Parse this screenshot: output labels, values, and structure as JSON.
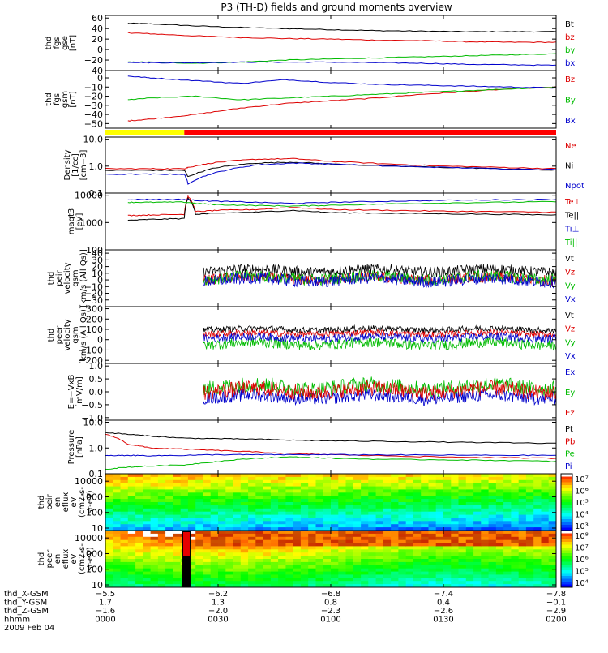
{
  "title": "P3 (TH-D) fields and ground moments overview",
  "chart_data": {
    "type": "line",
    "xlim": [
      0,
      120
    ],
    "x_units_note": "minutes after 0000 UT",
    "time_ticks": [
      0,
      30,
      60,
      90,
      120
    ],
    "panels": [
      {
        "id": "fgs-gse",
        "type": "line",
        "ylabel": [
          "thd",
          "fgs",
          "gse",
          "[nT]"
        ],
        "ylim": [
          -40,
          65
        ],
        "yticks": [
          60,
          40,
          20,
          0,
          -20,
          -40
        ],
        "ytick_labels": [
          "60",
          "40",
          "20",
          "0",
          "−20",
          "−40"
        ],
        "series": [
          {
            "name": "Bt",
            "color": "#000000",
            "x": [
              6,
              12,
              24,
              36,
              48,
              60,
              72,
              84,
              96,
              108,
              120
            ],
            "values": [
              50,
              49,
              45,
              42,
              40,
              38,
              36,
              35,
              34,
              34,
              34
            ]
          },
          {
            "name": "bz",
            "color": "#dd0000",
            "x": [
              6,
              12,
              24,
              36,
              48,
              60,
              72,
              84,
              96,
              108,
              120
            ],
            "values": [
              32,
              30,
              26,
              23,
              21,
              20,
              18,
              17,
              15,
              14,
              14
            ]
          },
          {
            "name": "by",
            "color": "#00bb00",
            "x": [
              6,
              12,
              24,
              36,
              48,
              60,
              72,
              84,
              96,
              108,
              120
            ],
            "values": [
              -24,
              -24,
              -26,
              -24,
              -20,
              -18,
              -16,
              -14,
              -12,
              -10,
              -8
            ]
          },
          {
            "name": "bx",
            "color": "#0000cc",
            "x": [
              6,
              12,
              24,
              36,
              48,
              60,
              72,
              84,
              96,
              108,
              120
            ],
            "values": [
              -24,
              -25,
              -25,
              -24,
              -24,
              -24,
              -25,
              -26,
              -28,
              -29,
              -30
            ]
          }
        ]
      },
      {
        "id": "fgs-gsm",
        "type": "line",
        "ylabel": [
          "thd",
          "fgs",
          "gsm",
          "[nT]"
        ],
        "ylim": [
          -55,
          8
        ],
        "yticks": [
          0,
          -10,
          -20,
          -30,
          -40,
          -50
        ],
        "ytick_labels": [
          "0",
          "−10",
          "−20",
          "−30",
          "−40",
          "−50"
        ],
        "series": [
          {
            "name": "Bz",
            "color": "#dd0000",
            "x": [
              6,
              12,
              24,
              36,
              48,
              60,
              72,
              84,
              96,
              108,
              120
            ],
            "values": [
              -47,
              -45,
              -40,
              -33,
              -28,
              -25,
              -22,
              -18,
              -15,
              -12,
              -10
            ]
          },
          {
            "name": "By",
            "color": "#00bb00",
            "x": [
              6,
              12,
              24,
              36,
              48,
              60,
              72,
              84,
              96,
              108,
              120
            ],
            "values": [
              -24,
              -22,
              -20,
              -24,
              -22,
              -20,
              -18,
              -16,
              -14,
              -12,
              -10
            ]
          },
          {
            "name": "Bx",
            "color": "#0000cc",
            "x": [
              6,
              12,
              24,
              36,
              48,
              60,
              72,
              84,
              96,
              108,
              120
            ],
            "values": [
              2,
              0,
              -3,
              -6,
              -2,
              -5,
              -7,
              -8,
              -9,
              -10,
              -11
            ]
          }
        ]
      },
      {
        "id": "region-bar",
        "type": "bar",
        "segments": [
          {
            "from": 0,
            "to": 21,
            "color": "#ffff00"
          },
          {
            "from": 21,
            "to": 120,
            "color": "#ff0000"
          }
        ]
      },
      {
        "id": "density",
        "type": "line",
        "log": true,
        "ylabel": [
          "Density",
          "[1/cc]",
          "[cm−3]"
        ],
        "ylim": [
          0.1,
          12
        ],
        "yticks": [
          10,
          1,
          0.1
        ],
        "ytick_labels": [
          "10.0",
          "1.0",
          "0.1"
        ],
        "series": [
          {
            "name": "Ne",
            "color": "#dd0000",
            "x": [
              0,
              12,
              21,
              22,
              30,
              40,
              50,
              60,
              75,
              90,
              105,
              120
            ],
            "values": [
              0.8,
              0.8,
              0.8,
              0.9,
              1.4,
              1.8,
              1.9,
              1.5,
              1.2,
              1.0,
              0.9,
              0.8
            ]
          },
          {
            "name": "Ni",
            "color": "#000000",
            "x": [
              0,
              12,
              21,
              22,
              30,
              40,
              50,
              60,
              75,
              90,
              105,
              120
            ],
            "values": [
              0.7,
              0.7,
              0.7,
              0.4,
              0.9,
              1.3,
              1.4,
              1.2,
              1.0,
              0.9,
              0.8,
              0.7
            ]
          },
          {
            "name": "Npot",
            "color": "#0000cc",
            "x": [
              0,
              12,
              21,
              22,
              30,
              40,
              50,
              60,
              75,
              90,
              105,
              120
            ],
            "values": [
              0.5,
              0.5,
              0.5,
              0.22,
              0.6,
              1.1,
              1.3,
              1.2,
              1.0,
              0.9,
              0.8,
              0.75
            ]
          }
        ]
      },
      {
        "id": "temperature",
        "type": "line",
        "log": true,
        "ylabel": [
          "magt3",
          "[eV]"
        ],
        "ylim": [
          100,
          12000
        ],
        "yticks": [
          10000,
          1000,
          100
        ],
        "ytick_labels": [
          "10000",
          "1000",
          "100"
        ],
        "series": [
          {
            "name": "Te⊥",
            "color": "#dd0000",
            "x": [
              6,
              12,
              21,
              22,
              24,
              30,
              40,
              50,
              60,
              75,
              90,
              105,
              120
            ],
            "values": [
              1800,
              1900,
              2000,
              9000,
              2500,
              2800,
              3000,
              3600,
              3000,
              2800,
              2600,
              2500,
              2400
            ]
          },
          {
            "name": "Te||",
            "color": "#000000",
            "x": [
              6,
              12,
              21,
              22,
              24,
              30,
              40,
              50,
              60,
              75,
              90,
              105,
              120
            ],
            "values": [
              1200,
              1300,
              1400,
              8000,
              2000,
              2200,
              2400,
              2800,
              2300,
              2200,
              2100,
              2000,
              1900
            ]
          },
          {
            "name": "Ti⊥",
            "color": "#0000cc",
            "x": [
              6,
              12,
              21,
              24,
              30,
              40,
              50,
              60,
              75,
              90,
              105,
              120
            ],
            "values": [
              7000,
              7000,
              7000,
              6500,
              6000,
              5500,
              5000,
              5500,
              6000,
              6500,
              6800,
              7000
            ]
          },
          {
            "name": "Ti||",
            "color": "#00bb00",
            "x": [
              6,
              12,
              21,
              24,
              30,
              40,
              50,
              60,
              75,
              90,
              105,
              120
            ],
            "values": [
              5500,
              5500,
              5600,
              5000,
              4500,
              4200,
              4000,
              4300,
              4800,
              5200,
              5500,
              5800
            ]
          }
        ]
      },
      {
        "id": "peir-velocity",
        "type": "line",
        "noisy": true,
        "ylabel": [
          "thd",
          "peir",
          "velocity",
          "gsm",
          "[km/s (All Qs)]"
        ],
        "ylim": [
          -40,
          45
        ],
        "yticks": [
          40,
          30,
          20,
          10,
          0,
          -10,
          -20,
          -30
        ],
        "ytick_labels": [
          "40",
          "30",
          "20",
          "10",
          "0",
          "−10",
          "−20",
          "−30"
        ],
        "start_x": 26,
        "series": [
          {
            "name": "Vt",
            "color": "#000000",
            "mean": 14,
            "amp": 8
          },
          {
            "name": "Vz",
            "color": "#dd0000",
            "mean": 2,
            "amp": 8
          },
          {
            "name": "Vy",
            "color": "#00bb00",
            "mean": 3,
            "amp": 9
          },
          {
            "name": "Vx",
            "color": "#0000cc",
            "mean": 0,
            "amp": 9
          }
        ]
      },
      {
        "id": "peer-velocity",
        "type": "line",
        "noisy": true,
        "ylabel": [
          "thd",
          "peer",
          "velocity",
          "gsm",
          "[km/s (All Qs)]"
        ],
        "ylim": [
          -230,
          320
        ],
        "yticks": [
          300,
          200,
          100,
          0,
          -100,
          -200
        ],
        "ytick_labels": [
          "300",
          "200",
          "100",
          "0",
          "−100",
          "−200"
        ],
        "start_x": 26,
        "series": [
          {
            "name": "Vt",
            "color": "#000000",
            "mean": 100,
            "amp": 30
          },
          {
            "name": "Vz",
            "color": "#dd0000",
            "mean": 60,
            "amp": 30
          },
          {
            "name": "Vy",
            "color": "#00bb00",
            "mean": -40,
            "amp": 50
          },
          {
            "name": "Vx",
            "color": "#0000cc",
            "mean": 20,
            "amp": 40
          }
        ]
      },
      {
        "id": "e-field",
        "type": "line",
        "noisy": true,
        "ylabel": [
          "E=−VxB",
          "[mV/m]"
        ],
        "ylim": [
          -1.1,
          1.1
        ],
        "yticks": [
          1.0,
          0.5,
          0.0,
          -0.5,
          -1.0
        ],
        "ytick_labels": [
          "1.0",
          "0.5",
          "0.0",
          "−0.5",
          "−1.0"
        ],
        "start_x": 26,
        "series": [
          {
            "name": "Ex",
            "color": "#0000cc",
            "mean": -0.2,
            "amp": 0.25
          },
          {
            "name": "Ey",
            "color": "#00bb00",
            "mean": 0.2,
            "amp": 0.3
          },
          {
            "name": "Ez",
            "color": "#dd0000",
            "mean": 0.05,
            "amp": 0.3
          }
        ]
      },
      {
        "id": "pressure",
        "type": "line",
        "log": true,
        "ylabel": [
          "Pressure",
          "[nPa]"
        ],
        "ylim": [
          0.1,
          12
        ],
        "yticks": [
          10,
          1,
          0.1
        ],
        "ytick_labels": [
          "10.0",
          "1.0",
          "0.1"
        ],
        "series": [
          {
            "name": "Pt",
            "color": "#000000",
            "x": [
              0,
              6,
              12,
              21,
              30,
              40,
              50,
              60,
              75,
              90,
              105,
              120
            ],
            "values": [
              4.0,
              3.4,
              2.9,
              2.4,
              2.3,
              2.2,
              2.0,
              1.9,
              1.8,
              1.7,
              1.6,
              1.5
            ]
          },
          {
            "name": "Pb",
            "color": "#dd0000",
            "x": [
              0,
              6,
              12,
              21,
              30,
              40,
              50,
              60,
              75,
              90,
              105,
              120
            ],
            "values": [
              3.5,
              1.4,
              1.0,
              0.9,
              0.8,
              0.7,
              0.6,
              0.55,
              0.5,
              0.45,
              0.42,
              0.4
            ]
          },
          {
            "name": "Pe",
            "color": "#00bb00",
            "x": [
              0,
              6,
              12,
              21,
              30,
              40,
              50,
              60,
              75,
              90,
              105,
              120
            ],
            "values": [
              0.15,
              0.18,
              0.2,
              0.22,
              0.3,
              0.4,
              0.45,
              0.4,
              0.36,
              0.35,
              0.33,
              0.3
            ]
          },
          {
            "name": "Pi",
            "color": "#0000cc",
            "x": [
              0,
              6,
              12,
              21,
              30,
              40,
              50,
              60,
              75,
              90,
              105,
              120
            ],
            "values": [
              0.5,
              0.52,
              0.5,
              0.52,
              0.55,
              0.55,
              0.55,
              0.55,
              0.54,
              0.53,
              0.52,
              0.52
            ]
          }
        ]
      },
      {
        "id": "peir-spec",
        "type": "heatmap",
        "log": true,
        "ylabel": [
          "thd",
          "peir",
          "en",
          "eflux",
          "eV",
          "(cm2-s-",
          "sr-eV)"
        ],
        "ylim": [
          7,
          30000
        ],
        "yticks": [
          10000,
          1000,
          100,
          10
        ],
        "ytick_labels": [
          "10000",
          "1000",
          "100",
          "10"
        ],
        "colorbar": {
          "labels": [
            "10⁷",
            "10⁶",
            "10⁵",
            "10⁴",
            "10³"
          ]
        }
      },
      {
        "id": "peer-spec",
        "type": "heatmap",
        "log": true,
        "ylabel": [
          "thd",
          "peer",
          "en",
          "eflux",
          "eV",
          "(cm2-s-",
          "sr-eV)"
        ],
        "ylim": [
          7,
          30000
        ],
        "yticks": [
          10000,
          1000,
          100,
          10
        ],
        "ytick_labels": [
          "10000",
          "1000",
          "100",
          "10"
        ],
        "colorbar": {
          "labels": [
            "10⁸",
            "10⁷",
            "10⁶",
            "10⁵",
            "10⁴"
          ]
        }
      }
    ],
    "ephemeris": {
      "rows": [
        {
          "label": "thd_X-GSM",
          "values": [
            "−5.5",
            "−6.2",
            "−6.8",
            "−7.4",
            "−7.8"
          ]
        },
        {
          "label": "thd_Y-GSM",
          "values": [
            "1.7",
            "1.3",
            "0.8",
            "0.4",
            "−0.1"
          ]
        },
        {
          "label": "thd_Z-GSM",
          "values": [
            "−1.6",
            "−2.0",
            "−2.3",
            "−2.6",
            "−2.9"
          ]
        },
        {
          "label": "hhmm",
          "values": [
            "0000",
            "0030",
            "0100",
            "0130",
            "0200"
          ]
        }
      ],
      "date": "2009 Feb 04"
    }
  }
}
